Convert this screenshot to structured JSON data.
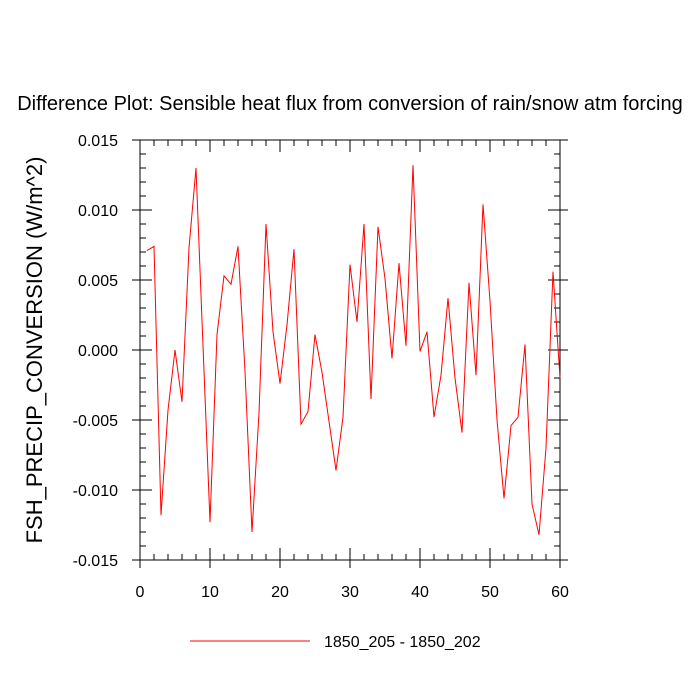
{
  "chart_data": {
    "type": "line",
    "title": "Difference Plot: Sensible heat flux from conversion of rain/snow atm forcing",
    "xlabel": "",
    "ylabel": "FSH_PRECIP_CONVERSION  (W/m^2)",
    "xlim": [
      0,
      60
    ],
    "ylim": [
      -0.015,
      0.015
    ],
    "x_ticks": [
      0,
      10,
      20,
      30,
      40,
      50,
      60
    ],
    "x_tick_labels": [
      "0",
      "10",
      "20",
      "30",
      "40",
      "50",
      "60"
    ],
    "y_ticks": [
      -0.015,
      -0.01,
      -0.005,
      0.0,
      0.005,
      0.01,
      0.015
    ],
    "y_tick_labels": [
      "-0.015",
      "-0.010",
      "-0.005",
      "0.000",
      "0.005",
      "0.010",
      "0.015"
    ],
    "grid": false,
    "legend_position": "bottom-center",
    "series": [
      {
        "name": "1850_205 - 1850_202",
        "color": "#ff0000",
        "x": [
          1,
          2,
          3,
          4,
          5,
          6,
          7,
          8,
          9,
          10,
          11,
          12,
          13,
          14,
          15,
          16,
          17,
          18,
          19,
          20,
          21,
          22,
          23,
          24,
          25,
          26,
          27,
          28,
          29,
          30,
          31,
          32,
          33,
          34,
          35,
          36,
          37,
          38,
          39,
          40,
          41,
          42,
          43,
          44,
          45,
          46,
          47,
          48,
          49,
          50,
          51,
          52,
          53,
          54,
          55,
          56,
          57,
          58,
          59,
          60
        ],
        "values": [
          0.0071,
          0.0074,
          -0.0118,
          -0.0043,
          0.0,
          -0.0037,
          0.0073,
          0.013,
          0.0003,
          -0.0123,
          0.0011,
          0.0053,
          0.0047,
          0.0074,
          -0.0015,
          -0.013,
          -0.0045,
          0.009,
          0.0013,
          -0.0024,
          0.0018,
          0.0072,
          -0.0053,
          -0.0044,
          0.0011,
          -0.0016,
          -0.0051,
          -0.0086,
          -0.0048,
          0.0061,
          0.002,
          0.009,
          -0.0035,
          0.0088,
          0.0051,
          -0.0006,
          0.0062,
          0.0003,
          0.0132,
          -0.0001,
          0.0013,
          -0.0048,
          -0.0018,
          0.0037,
          -0.002,
          -0.0059,
          0.0048,
          -0.0018,
          0.0104,
          0.0035,
          -0.005,
          -0.0106,
          -0.0054,
          -0.0048,
          0.0004,
          -0.011,
          -0.0132,
          -0.007,
          0.0056,
          -0.002
        ]
      }
    ]
  }
}
